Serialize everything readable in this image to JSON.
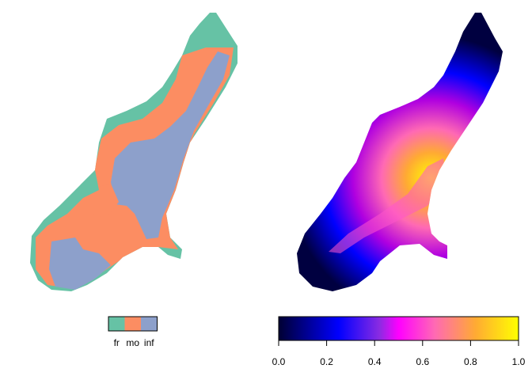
{
  "left_panel": {
    "legend": {
      "entries": [
        {
          "label": "fr",
          "color": "#66c2a5"
        },
        {
          "label": "mo",
          "color": "#fc8d62"
        },
        {
          "label": "inf",
          "color": "#8da0cb"
        }
      ]
    }
  },
  "right_panel": {
    "colorbar": {
      "ticks": [
        "0.0",
        "0.2",
        "0.4",
        "0.6",
        "0.8",
        "1.0"
      ],
      "range": [
        0,
        1
      ],
      "palette": [
        "#000033",
        "#0000ff",
        "#8a2be2",
        "#ff00ff",
        "#ff69b4",
        "#ffaa33",
        "#ffff00"
      ]
    }
  }
}
